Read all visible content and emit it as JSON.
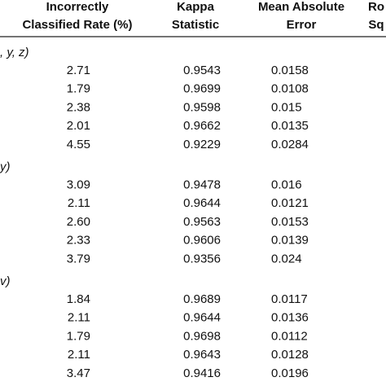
{
  "header": {
    "columns": [
      {
        "lines": [
          "Incorrectly",
          "Classified Rate (%)"
        ]
      },
      {
        "lines": [
          "Kappa",
          "Statistic"
        ]
      },
      {
        "lines": [
          "Mean Absolute",
          "Error"
        ]
      },
      {
        "lines": [
          "Ro",
          "Sq"
        ]
      }
    ]
  },
  "groups": [
    {
      "label": ", y, z)",
      "rows": [
        [
          "2.71",
          "0.9543",
          "0.0158"
        ],
        [
          "1.79",
          "0.9699",
          "0.0108"
        ],
        [
          "2.38",
          "0.9598",
          "0.015"
        ],
        [
          "2.01",
          "0.9662",
          "0.0135"
        ],
        [
          "4.55",
          "0.9229",
          "0.0284"
        ]
      ]
    },
    {
      "label": "y)",
      "rows": [
        [
          "3.09",
          "0.9478",
          "0.016"
        ],
        [
          "2.11",
          "0.9644",
          "0.0121"
        ],
        [
          "2.60",
          "0.9563",
          "0.0153"
        ],
        [
          "2.33",
          "0.9606",
          "0.0139"
        ],
        [
          "3.79",
          "0.9356",
          "0.024"
        ]
      ]
    },
    {
      "label": "v)",
      "rows": [
        [
          "1.84",
          "0.9689",
          "0.0117"
        ],
        [
          "2.11",
          "0.9644",
          "0.0136"
        ],
        [
          "1.79",
          "0.9698",
          "0.0112"
        ],
        [
          "2.11",
          "0.9643",
          "0.0128"
        ],
        [
          "3.47",
          "0.9416",
          "0.0196"
        ]
      ]
    }
  ]
}
